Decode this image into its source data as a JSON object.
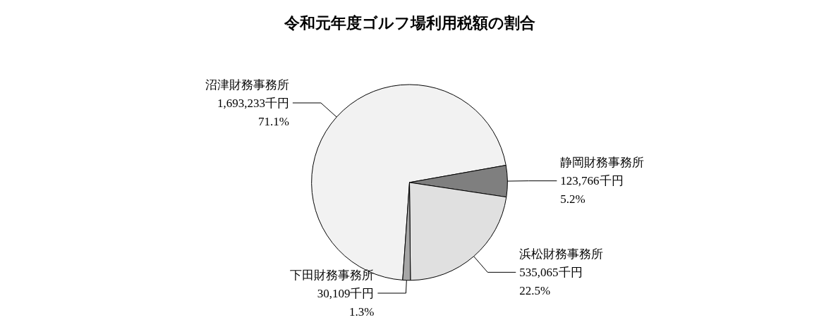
{
  "chart_data": {
    "type": "pie",
    "title": "令和元年度ゴルフ場利用税額の割合",
    "categories": [
      "沼津財務事務所",
      "静岡財務事務所",
      "浜松財務事務所",
      "下田財務事務所"
    ],
    "values": [
      1693233,
      123766,
      535065,
      30109
    ],
    "value_labels": [
      "1,693,233千円\n71.1%",
      "123,766千円\n5.2%",
      "535,065千円\n22.5%",
      "30,109千円\n1.3%"
    ],
    "colors": [
      "#f2f2f2",
      "#7f7f7f",
      "#e0e0e0",
      "#a6a6a6"
    ]
  }
}
